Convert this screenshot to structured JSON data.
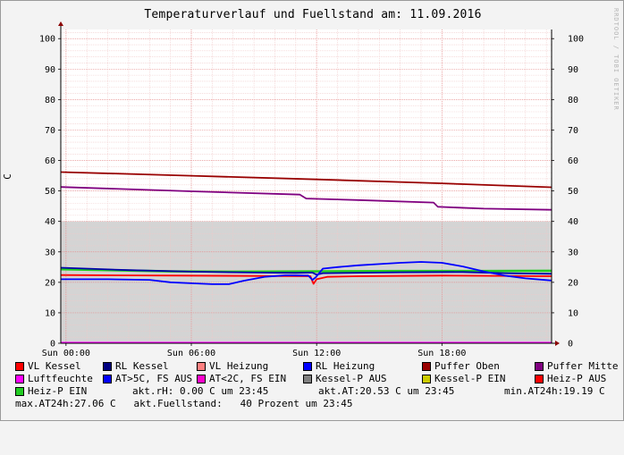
{
  "title": "Temperaturverlauf und Fuellstand am: 11.09.2016",
  "watermark": "RRDTOOL / TOBI OETIKER",
  "chart_data": {
    "type": "line",
    "ylabel": "C",
    "ylim": [
      0,
      103
    ],
    "yticks": [
      0,
      10,
      20,
      30,
      40,
      50,
      60,
      70,
      80,
      90,
      100
    ],
    "xlim_hours": [
      -0.25,
      23.25
    ],
    "xticks": [
      {
        "label": "Sun 00:00",
        "hour": 0
      },
      {
        "label": "Sun 06:00",
        "hour": 6
      },
      {
        "label": "Sun 12:00",
        "hour": 12
      },
      {
        "label": "Sun 18:00",
        "hour": 18
      }
    ],
    "grid": true,
    "legend_position": "bottom",
    "fill_area": {
      "name": "Fuellstand",
      "color": "#d4d4d4",
      "level": 40
    },
    "series": [
      {
        "name": "Puffer Oben",
        "color": "#990000",
        "points": [
          [
            -0.25,
            56.2
          ],
          [
            6,
            55
          ],
          [
            12,
            53.8
          ],
          [
            18,
            52.5
          ],
          [
            23.25,
            51.2
          ]
        ]
      },
      {
        "name": "Puffer Mitte",
        "color": "#800080",
        "points": [
          [
            -0.25,
            51.3
          ],
          [
            6,
            49.9
          ],
          [
            11.2,
            48.8
          ],
          [
            11.5,
            47.5
          ],
          [
            14,
            47
          ],
          [
            17.6,
            46.2
          ],
          [
            17.8,
            44.8
          ],
          [
            20,
            44.2
          ],
          [
            23.25,
            43.8
          ]
        ]
      },
      {
        "name": "Heiz-P EIN",
        "color": "#22cc22",
        "points": [
          [
            -0.25,
            24.3
          ],
          [
            2,
            24
          ],
          [
            5,
            23.6
          ],
          [
            8,
            23.5
          ],
          [
            12,
            23.6
          ],
          [
            16,
            23.7
          ],
          [
            20,
            23.7
          ],
          [
            23.25,
            23.8
          ]
        ]
      },
      {
        "name": "RL Kessel",
        "color": "#0000aa",
        "points": [
          [
            -0.25,
            24.8
          ],
          [
            3,
            24
          ],
          [
            6,
            23.5
          ],
          [
            9,
            23.2
          ],
          [
            11,
            23.1
          ],
          [
            11.8,
            23.2
          ],
          [
            12,
            22.5
          ],
          [
            12.3,
            23
          ],
          [
            16,
            23.3
          ],
          [
            19,
            23.4
          ],
          [
            21,
            23
          ],
          [
            23.25,
            22.8
          ]
        ]
      },
      {
        "name": "VL Kessel",
        "color": "#ff0000",
        "points": [
          [
            -0.25,
            22.4
          ],
          [
            11.7,
            22
          ],
          [
            11.85,
            19.5
          ],
          [
            12,
            21
          ],
          [
            12.5,
            21.8
          ],
          [
            14,
            22
          ],
          [
            18,
            22.2
          ],
          [
            23.25,
            22
          ]
        ]
      },
      {
        "name": "RL Heizung",
        "color": "#0000ff",
        "points": [
          [
            -0.25,
            21
          ],
          [
            2,
            21
          ],
          [
            4,
            20.8
          ],
          [
            5,
            20
          ],
          [
            6,
            19.7
          ],
          [
            7,
            19.4
          ],
          [
            7.8,
            19.4
          ],
          [
            8.5,
            20.5
          ],
          [
            9.5,
            21.8
          ],
          [
            10.5,
            22.3
          ],
          [
            11.6,
            22.2
          ],
          [
            11.8,
            20.8
          ],
          [
            11.95,
            21.6
          ],
          [
            12.3,
            24.5
          ],
          [
            13,
            25
          ],
          [
            14,
            25.6
          ],
          [
            15,
            26
          ],
          [
            16,
            26.4
          ],
          [
            17,
            26.7
          ],
          [
            18,
            26.4
          ],
          [
            19,
            25.2
          ],
          [
            20,
            23.6
          ],
          [
            21,
            22.2
          ],
          [
            22,
            21.3
          ],
          [
            23.25,
            20.6
          ]
        ]
      },
      {
        "name": "Luftfeuchte",
        "color": "#ff00ff",
        "points": [
          [
            -0.25,
            0.2
          ],
          [
            23.25,
            0.2
          ]
        ]
      }
    ]
  },
  "legend": {
    "row1": [
      {
        "label": "VL Kessel",
        "color": "#ff0000"
      },
      {
        "label": "RL Kessel",
        "color": "#000080"
      },
      {
        "label": "VL Heizung",
        "color": "#ff8080"
      },
      {
        "label": "RL Heizung",
        "color": "#0000ff"
      },
      {
        "label": "Puffer Oben",
        "color": "#990000"
      },
      {
        "label": "Puffer Mitte",
        "color": "#800080"
      }
    ],
    "row2": [
      {
        "label": "Luftfeuchte",
        "color": "#ff00ff"
      },
      {
        "label": "AT>5C, FS AUS",
        "color": "#0000ff"
      },
      {
        "label": "AT<2C, FS EIN",
        "color": "#ff00cc"
      },
      {
        "label": "Kessel-P AUS",
        "color": "#808080"
      },
      {
        "label": "Kessel-P EIN",
        "color": "#cccc00"
      },
      {
        "label": "Heiz-P AUS",
        "color": "#ff0000"
      }
    ],
    "row3_item": {
      "label": "Heiz-P EIN",
      "color": "#22cc22"
    },
    "row3_text1": "akt.rH: 0.00 C um 23:45",
    "row3_text2": "akt.AT:20.53 C um 23:45",
    "row3_text3": "min.AT24h:19.19 C",
    "row4_text": "max.AT24h:27.06 C   akt.Fuellstand:   40 Prozent um 23:45"
  }
}
